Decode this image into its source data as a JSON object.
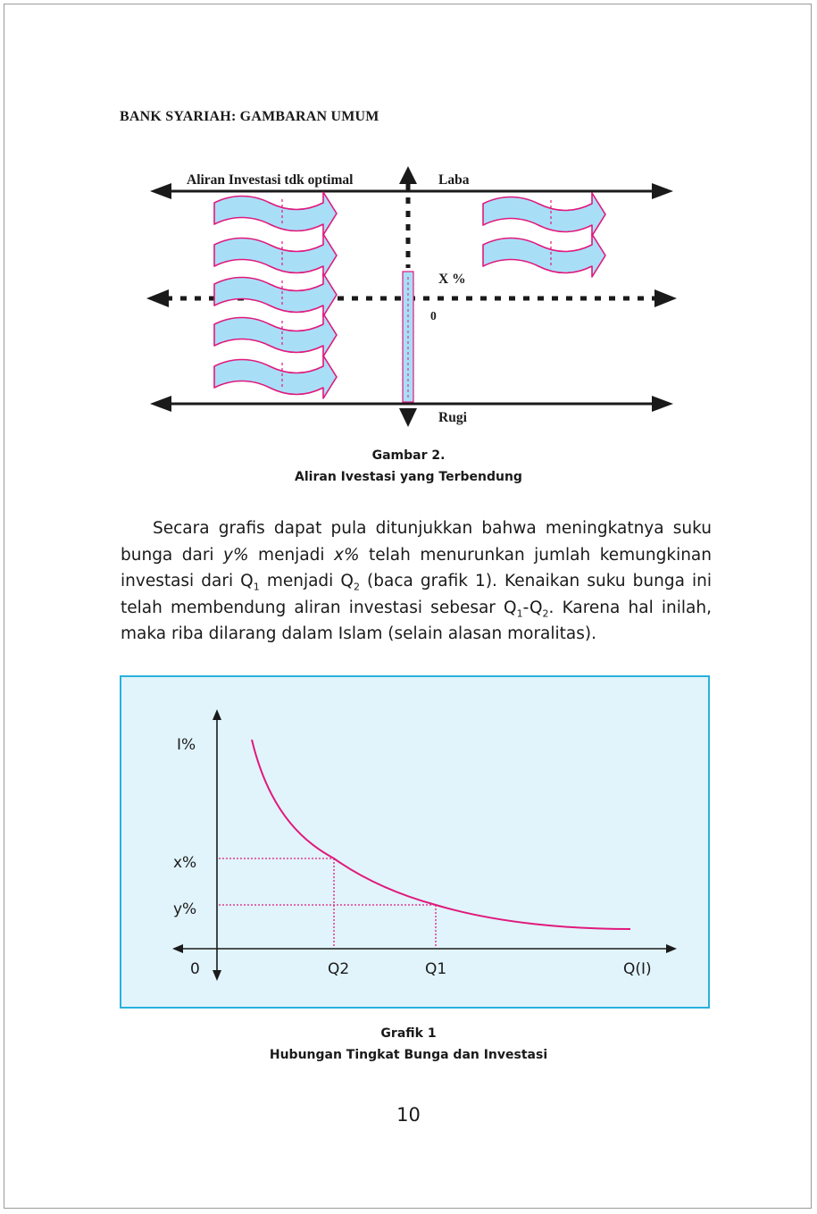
{
  "running_head": "BANK SYARIAH: GAMBARAN UMUM",
  "figure2": {
    "label_top_left": "Aliran Investasi tdk optimal",
    "label_top_right": "Laba",
    "label_x_percent": "X %",
    "label_zero": "0",
    "label_bottom": "Rugi",
    "caption_title": "Gambar 2.",
    "caption_subtitle": "Aliran Ivestasi yang Terbendung"
  },
  "paragraph": {
    "t1": "Secara grafis dapat pula ditunjukkan bahwa meningkatnya suku bunga dari ",
    "y_pct": "y%",
    "t2": " menjadi ",
    "x_pct": "x%",
    "t3": " telah menurunkan jumlah kemungkinan investasi dari Q",
    "sub1": "1",
    "t4": " menjadi Q",
    "sub2": "2",
    "t5": " (baca grafik 1). Kenaikan suku bunga ini telah membendung  aliran investasi sebesar Q",
    "sub3": "1",
    "t6": "-Q",
    "sub4": "2",
    "t7": ". Karena hal inilah, maka riba dilarang dalam Islam (selain alasan moralitas)."
  },
  "chart_data": {
    "type": "line",
    "ylabel": "I%",
    "xlabel": "Q(I)",
    "origin_label": "0",
    "y_ticks": [
      "x%",
      "y%"
    ],
    "x_ticks": [
      "Q2",
      "Q1"
    ],
    "series": [
      {
        "name": "",
        "description": "decreasing convex curve (investment demand vs interest rate)"
      }
    ],
    "markers": [
      {
        "x": "Q2",
        "y": "x%"
      },
      {
        "x": "Q1",
        "y": "y%"
      }
    ],
    "colors": {
      "curve": "#e0197d",
      "background": "#e1f4fb",
      "border": "#29b0dd"
    },
    "caption_title": "Grafik 1",
    "caption_subtitle": "Hubungan Tingkat Bunga dan Investasi"
  },
  "colors": {
    "arrow_fill": "#a9def7",
    "arrow_stroke": "#e0197d",
    "axis": "#1a1a1a"
  },
  "page_number": "10"
}
